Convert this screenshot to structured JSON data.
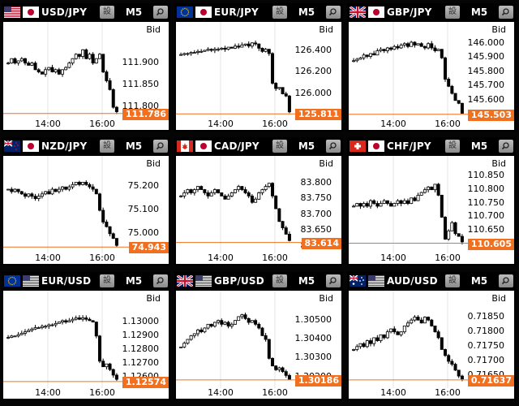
{
  "bid_label": "Bid",
  "timeframe": "M5",
  "settings_glyph": "設",
  "zoom_icon": "magnifier-icon",
  "colors": {
    "price_line": "#f07020",
    "price_badge": "#f07020",
    "candle": "#000000",
    "chart_bg": "#ffffff",
    "header_bg": "#000000"
  },
  "panels": [
    {
      "pair": "USD/JPY",
      "flags": [
        "us-flag",
        "jp-flag"
      ],
      "x_labels": [
        "14:00",
        "16:00"
      ],
      "y_ticks": [
        "111.900",
        "111.850",
        "111.800"
      ],
      "current_price": "111.786",
      "chart_data": {
        "type": "candlestick",
        "ylim": [
          111.78,
          111.96
        ],
        "y_tick_values": [
          111.9,
          111.85,
          111.8
        ],
        "current": 111.786,
        "closes": [
          111.9,
          111.91,
          111.9,
          111.905,
          111.91,
          111.9,
          111.895,
          111.9,
          111.885,
          111.88,
          111.875,
          111.885,
          111.89,
          111.88,
          111.885,
          111.875,
          111.885,
          111.89,
          111.9,
          111.91,
          111.92,
          111.915,
          111.93,
          111.91,
          111.92,
          111.9,
          111.91,
          111.92,
          111.88,
          111.86,
          111.84,
          111.8,
          111.79
        ]
      }
    },
    {
      "pair": "EUR/JPY",
      "flags": [
        "eu-flag",
        "jp-flag"
      ],
      "x_labels": [
        "14:00",
        "16:00"
      ],
      "y_ticks": [
        "126.400",
        "126.200",
        "126.000"
      ],
      "current_price": "125.811",
      "chart_data": {
        "type": "candlestick",
        "ylim": [
          125.79,
          126.54
        ],
        "y_tick_values": [
          126.4,
          126.2,
          126.0
        ],
        "current": 125.811,
        "closes": [
          126.37,
          126.38,
          126.38,
          126.39,
          126.39,
          126.4,
          126.4,
          126.41,
          126.42,
          126.41,
          126.42,
          126.42,
          126.43,
          126.42,
          126.44,
          126.43,
          126.45,
          126.44,
          126.46,
          126.47,
          126.45,
          126.48,
          126.47,
          126.43,
          126.4,
          126.42,
          126.38,
          126.1,
          126.05,
          126.06,
          126.0,
          125.98,
          125.83
        ]
      }
    },
    {
      "pair": "GBP/JPY",
      "flags": [
        "gb-flag",
        "jp-flag"
      ],
      "x_labels": [
        "14:00",
        "16:00"
      ],
      "y_ticks": [
        "146.000",
        "145.900",
        "145.800",
        "145.700",
        "145.600"
      ],
      "current_price": "145.503",
      "chart_data": {
        "type": "candlestick",
        "ylim": [
          145.49,
          146.05
        ],
        "y_tick_values": [
          146.0,
          145.9,
          145.8,
          145.7,
          145.6
        ],
        "current": 145.503,
        "closes": [
          145.88,
          145.89,
          145.9,
          145.92,
          145.91,
          145.93,
          145.92,
          145.95,
          145.96,
          145.95,
          145.97,
          145.96,
          145.98,
          145.97,
          145.99,
          146.0,
          145.98,
          146.01,
          145.99,
          146.0,
          145.98,
          145.97,
          146.0,
          145.97,
          145.95,
          145.96,
          145.9,
          145.75,
          145.7,
          145.65,
          145.6,
          145.58,
          145.51
        ]
      }
    },
    {
      "pair": "NZD/JPY",
      "flags": [
        "nz-flag",
        "jp-flag"
      ],
      "x_labels": [
        "14:00",
        "16:00"
      ],
      "y_ticks": [
        "75.200",
        "75.100",
        "75.000"
      ],
      "current_price": "74.943",
      "chart_data": {
        "type": "candlestick",
        "ylim": [
          74.93,
          75.27
        ],
        "y_tick_values": [
          75.2,
          75.1,
          75.0
        ],
        "current": 74.943,
        "closes": [
          75.19,
          75.18,
          75.19,
          75.18,
          75.17,
          75.16,
          75.17,
          75.16,
          75.15,
          75.16,
          75.17,
          75.18,
          75.17,
          75.19,
          75.18,
          75.19,
          75.2,
          75.19,
          75.2,
          75.21,
          75.22,
          75.21,
          75.22,
          75.21,
          75.2,
          75.19,
          75.17,
          75.1,
          75.05,
          75.03,
          75.0,
          74.98,
          74.95
        ]
      }
    },
    {
      "pair": "CAD/JPY",
      "flags": [
        "ca-flag",
        "jp-flag"
      ],
      "x_labels": [
        "14:00",
        "16:00"
      ],
      "y_ticks": [
        "83.800",
        "83.750",
        "83.700",
        "83.650",
        "83.600"
      ],
      "current_price": "83.614",
      "chart_data": {
        "type": "candlestick",
        "ylim": [
          83.59,
          83.84
        ],
        "y_tick_values": [
          83.8,
          83.75,
          83.7,
          83.65,
          83.6
        ],
        "current": 83.614,
        "closes": [
          83.76,
          83.77,
          83.78,
          83.77,
          83.78,
          83.79,
          83.78,
          83.77,
          83.76,
          83.77,
          83.78,
          83.77,
          83.76,
          83.75,
          83.76,
          83.77,
          83.78,
          83.79,
          83.78,
          83.77,
          83.76,
          83.74,
          83.75,
          83.77,
          83.78,
          83.79,
          83.8,
          83.76,
          83.72,
          83.68,
          83.66,
          83.64,
          83.62
        ]
      }
    },
    {
      "pair": "CHF/JPY",
      "flags": [
        "ch-flag",
        "jp-flag"
      ],
      "x_labels": [
        "14:00",
        "16:00"
      ],
      "y_ticks": [
        "110.850",
        "110.800",
        "110.750",
        "110.700",
        "110.650",
        "110.600"
      ],
      "current_price": "110.605",
      "chart_data": {
        "type": "candlestick",
        "ylim": [
          110.58,
          110.87
        ],
        "y_tick_values": [
          110.85,
          110.8,
          110.75,
          110.7,
          110.65,
          110.6
        ],
        "current": 110.605,
        "closes": [
          110.74,
          110.75,
          110.74,
          110.75,
          110.74,
          110.76,
          110.75,
          110.74,
          110.75,
          110.76,
          110.75,
          110.74,
          110.75,
          110.76,
          110.75,
          110.76,
          110.75,
          110.77,
          110.76,
          110.78,
          110.79,
          110.8,
          110.81,
          110.8,
          110.82,
          110.78,
          110.7,
          110.62,
          110.65,
          110.68,
          110.64,
          110.63,
          110.61
        ]
      }
    },
    {
      "pair": "EUR/USD",
      "flags": [
        "eu-flag",
        "us-flag"
      ],
      "x_labels": [
        "14:00",
        "16:00"
      ],
      "y_ticks": [
        "1.13000",
        "1.12900",
        "1.12800",
        "1.12700",
        "1.12600"
      ],
      "current_price": "1.12574",
      "chart_data": {
        "type": "candlestick",
        "ylim": [
          1.1255,
          1.1312
        ],
        "y_tick_values": [
          1.13,
          1.129,
          1.128,
          1.127,
          1.126
        ],
        "current": 1.12574,
        "closes": [
          1.1289,
          1.129,
          1.129,
          1.1291,
          1.1292,
          1.1293,
          1.1294,
          1.1295,
          1.1296,
          1.1296,
          1.1297,
          1.1297,
          1.1298,
          1.1298,
          1.1299,
          1.13,
          1.1301,
          1.13,
          1.1301,
          1.1302,
          1.1303,
          1.1302,
          1.1303,
          1.1302,
          1.1301,
          1.13,
          1.129,
          1.1272,
          1.1268,
          1.127,
          1.1266,
          1.1262,
          1.1259
        ]
      }
    },
    {
      "pair": "GBP/USD",
      "flags": [
        "gb-flag",
        "us-flag"
      ],
      "x_labels": [
        "14:00",
        "16:00"
      ],
      "y_ticks": [
        "1.30500",
        "1.30400",
        "1.30300",
        "1.30200"
      ],
      "current_price": "1.30186",
      "chart_data": {
        "type": "candlestick",
        "ylim": [
          1.3016,
          1.3058
        ],
        "y_tick_values": [
          1.305,
          1.304,
          1.303,
          1.302
        ],
        "current": 1.30186,
        "closes": [
          1.3036,
          1.3038,
          1.304,
          1.3042,
          1.3043,
          1.3045,
          1.3044,
          1.3046,
          1.3048,
          1.3047,
          1.3049,
          1.305,
          1.3048,
          1.3049,
          1.3047,
          1.3048,
          1.305,
          1.3052,
          1.3053,
          1.3051,
          1.3049,
          1.305,
          1.3048,
          1.3046,
          1.3042,
          1.304,
          1.303,
          1.3026,
          1.3024,
          1.3025,
          1.3023,
          1.3021,
          1.3019
        ]
      }
    },
    {
      "pair": "AUD/USD",
      "flags": [
        "au-flag",
        "us-flag"
      ],
      "x_labels": [
        "14:00",
        "16:00"
      ],
      "y_ticks": [
        "0.71850",
        "0.71800",
        "0.71750",
        "0.71700",
        "0.71650"
      ],
      "current_price": "0.71637",
      "chart_data": {
        "type": "candlestick",
        "ylim": [
          0.7162,
          0.7189
        ],
        "y_tick_values": [
          0.7185,
          0.718,
          0.7175,
          0.717,
          0.7165
        ],
        "current": 0.71637,
        "closes": [
          0.7174,
          0.7175,
          0.7176,
          0.7175,
          0.7177,
          0.7176,
          0.7178,
          0.7177,
          0.7179,
          0.7178,
          0.718,
          0.7181,
          0.718,
          0.7179,
          0.718,
          0.7182,
          0.7183,
          0.7184,
          0.7185,
          0.7184,
          0.7183,
          0.7185,
          0.7184,
          0.7182,
          0.718,
          0.7178,
          0.7174,
          0.7172,
          0.717,
          0.7169,
          0.7167,
          0.7165,
          0.7164
        ]
      }
    }
  ]
}
